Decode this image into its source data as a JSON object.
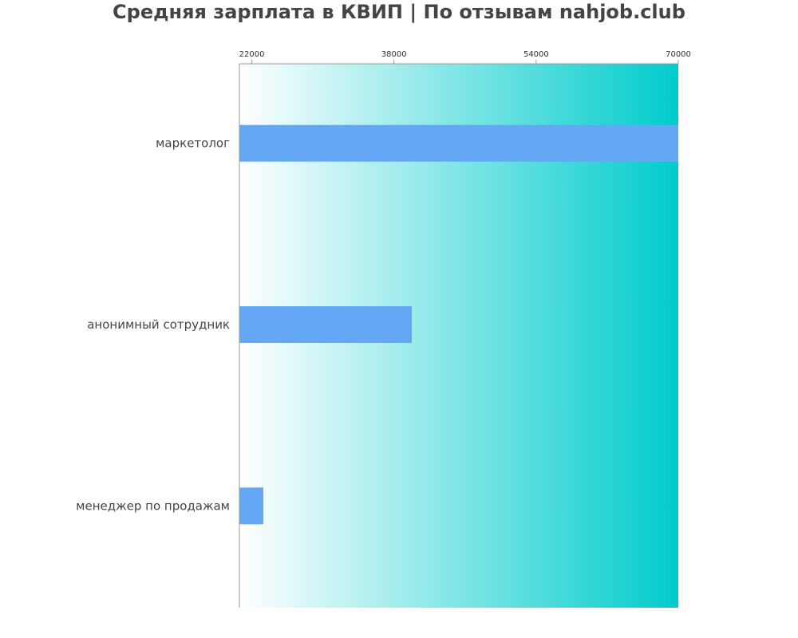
{
  "chart_data": {
    "type": "bar",
    "orientation": "horizontal",
    "title": "Средняя зарплата в КВИП | По отзывам nahjob.club",
    "categories": [
      "маркетолог",
      "анонимный сотрудник",
      "менеджер по продажам"
    ],
    "values": [
      70000,
      40000,
      23300
    ],
    "xlim": [
      20600,
      70000
    ],
    "xticks": [
      "22000",
      "38000",
      "54000",
      "70000"
    ],
    "xaxis_position": "top",
    "grid": false,
    "colors": {
      "bar": "#64a8f5",
      "background_gradient_start": "#ffffff",
      "background_gradient_end": "#00cccc",
      "axis": "#999999"
    }
  }
}
